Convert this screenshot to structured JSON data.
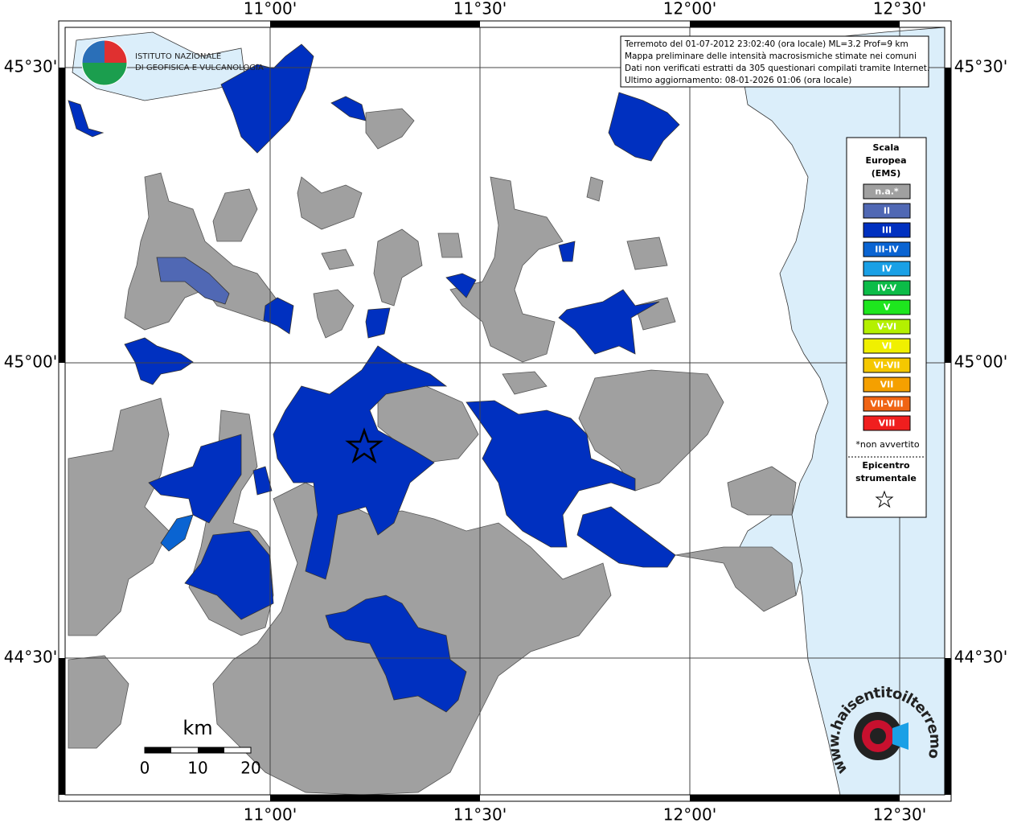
{
  "map": {
    "lon_labels": [
      "11°00'",
      "11°30'",
      "12°00'",
      "12°30'"
    ],
    "lat_labels": [
      "45°30'",
      "45°00'",
      "44°30'"
    ],
    "info": [
      "Terremoto del 01-07-2012 23:02:40 (ora locale) ML=3.2 Prof=9 km",
      "Mappa preliminare delle intensità macrosismiche stimate nei comuni",
      "Dati non verificati estratti da 305 questionari compilati tramite Internet.",
      "Ultimo aggiornamento: 08-01-2026 01:06 (ora locale)"
    ],
    "legend": {
      "title": [
        "Scala",
        "Europea",
        "(EMS)"
      ],
      "classes": [
        {
          "label": "n.a.*",
          "color": "#a0a0a0"
        },
        {
          "label": "II",
          "color": "#5068b4"
        },
        {
          "label": "III",
          "color": "#0030c0"
        },
        {
          "label": "III-IV",
          "color": "#0a64d2"
        },
        {
          "label": "IV",
          "color": "#1aa0e6"
        },
        {
          "label": "IV-V",
          "color": "#0cbc48"
        },
        {
          "label": "V",
          "color": "#1ee61e"
        },
        {
          "label": "V-VI",
          "color": "#b4f000"
        },
        {
          "label": "VI",
          "color": "#f0f000"
        },
        {
          "label": "VI-VII",
          "color": "#f5c800"
        },
        {
          "label": "VII",
          "color": "#f5a000"
        },
        {
          "label": "VII-VIII",
          "color": "#f06414"
        },
        {
          "label": "VIII",
          "color": "#f01e1e"
        }
      ],
      "note": "*non avvertito",
      "epicenter": [
        "Epicentro",
        "strumentale"
      ]
    },
    "scale": {
      "unit": "km",
      "ticks": [
        0,
        10,
        20
      ]
    },
    "logo": [
      "ISTITUTO NAZIONALE",
      "DI GEOFISICA E VULCANOLOGIA"
    ],
    "watermark": "www.haisentitoilterremoto.it"
  }
}
